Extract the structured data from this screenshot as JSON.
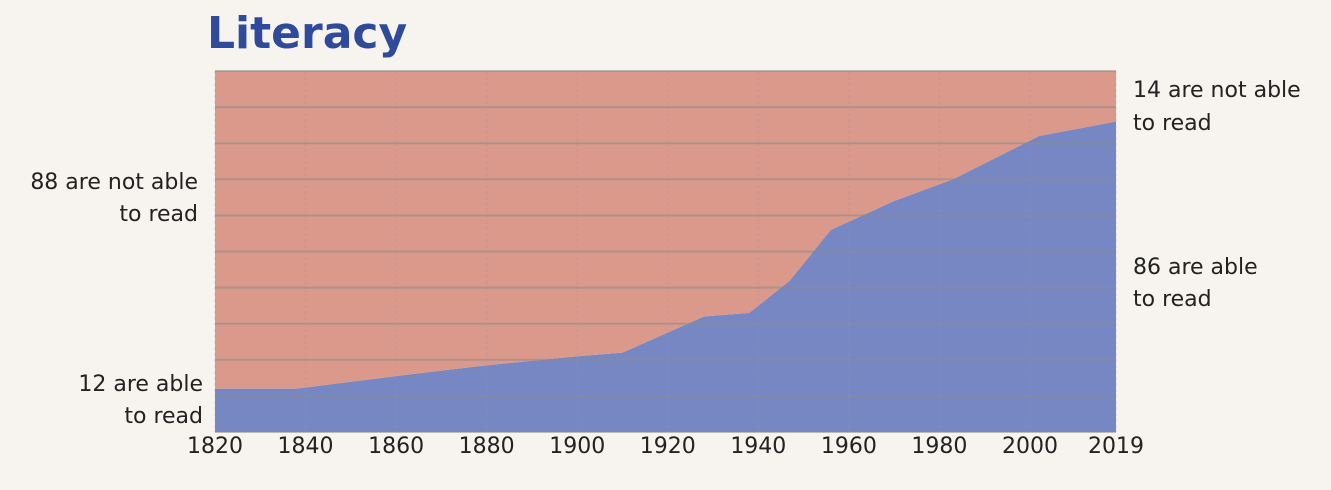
{
  "chart_data": {
    "type": "stacked_area",
    "title": "Literacy",
    "x": [
      1820,
      1838,
      1860,
      1880,
      1900,
      1910,
      1928,
      1938,
      1947,
      1956,
      1970,
      1983,
      2002,
      2019
    ],
    "series": [
      {
        "color": "#7787c4",
        "values": [
          12,
          12,
          15.5,
          18.5,
          21,
          22,
          32,
          33,
          42,
          56,
          64,
          70,
          82,
          86
        ]
      },
      {
        "color": "#db998b",
        "values": [
          88,
          88,
          84.5,
          81.5,
          79,
          78,
          68,
          67,
          58,
          44,
          36,
          30,
          18,
          14
        ]
      }
    ],
    "xlim": [
      1820,
      2019
    ],
    "xticks": [
      1820,
      1840,
      1860,
      1880,
      1900,
      1920,
      1940,
      1960,
      1980,
      2000,
      2019
    ],
    "ylim": [
      0,
      100
    ],
    "yticks": [
      0,
      10,
      20,
      30,
      40,
      50,
      60,
      70,
      80,
      90,
      100
    ],
    "show_ytick_labels": false,
    "grid": true,
    "annotations": [
      [
        "88 are not able",
        "to read"
      ],
      [
        "12 are able",
        "to read"
      ],
      [
        "14 are not able",
        "to read"
      ],
      [
        "86 are able",
        "to read"
      ]
    ]
  }
}
